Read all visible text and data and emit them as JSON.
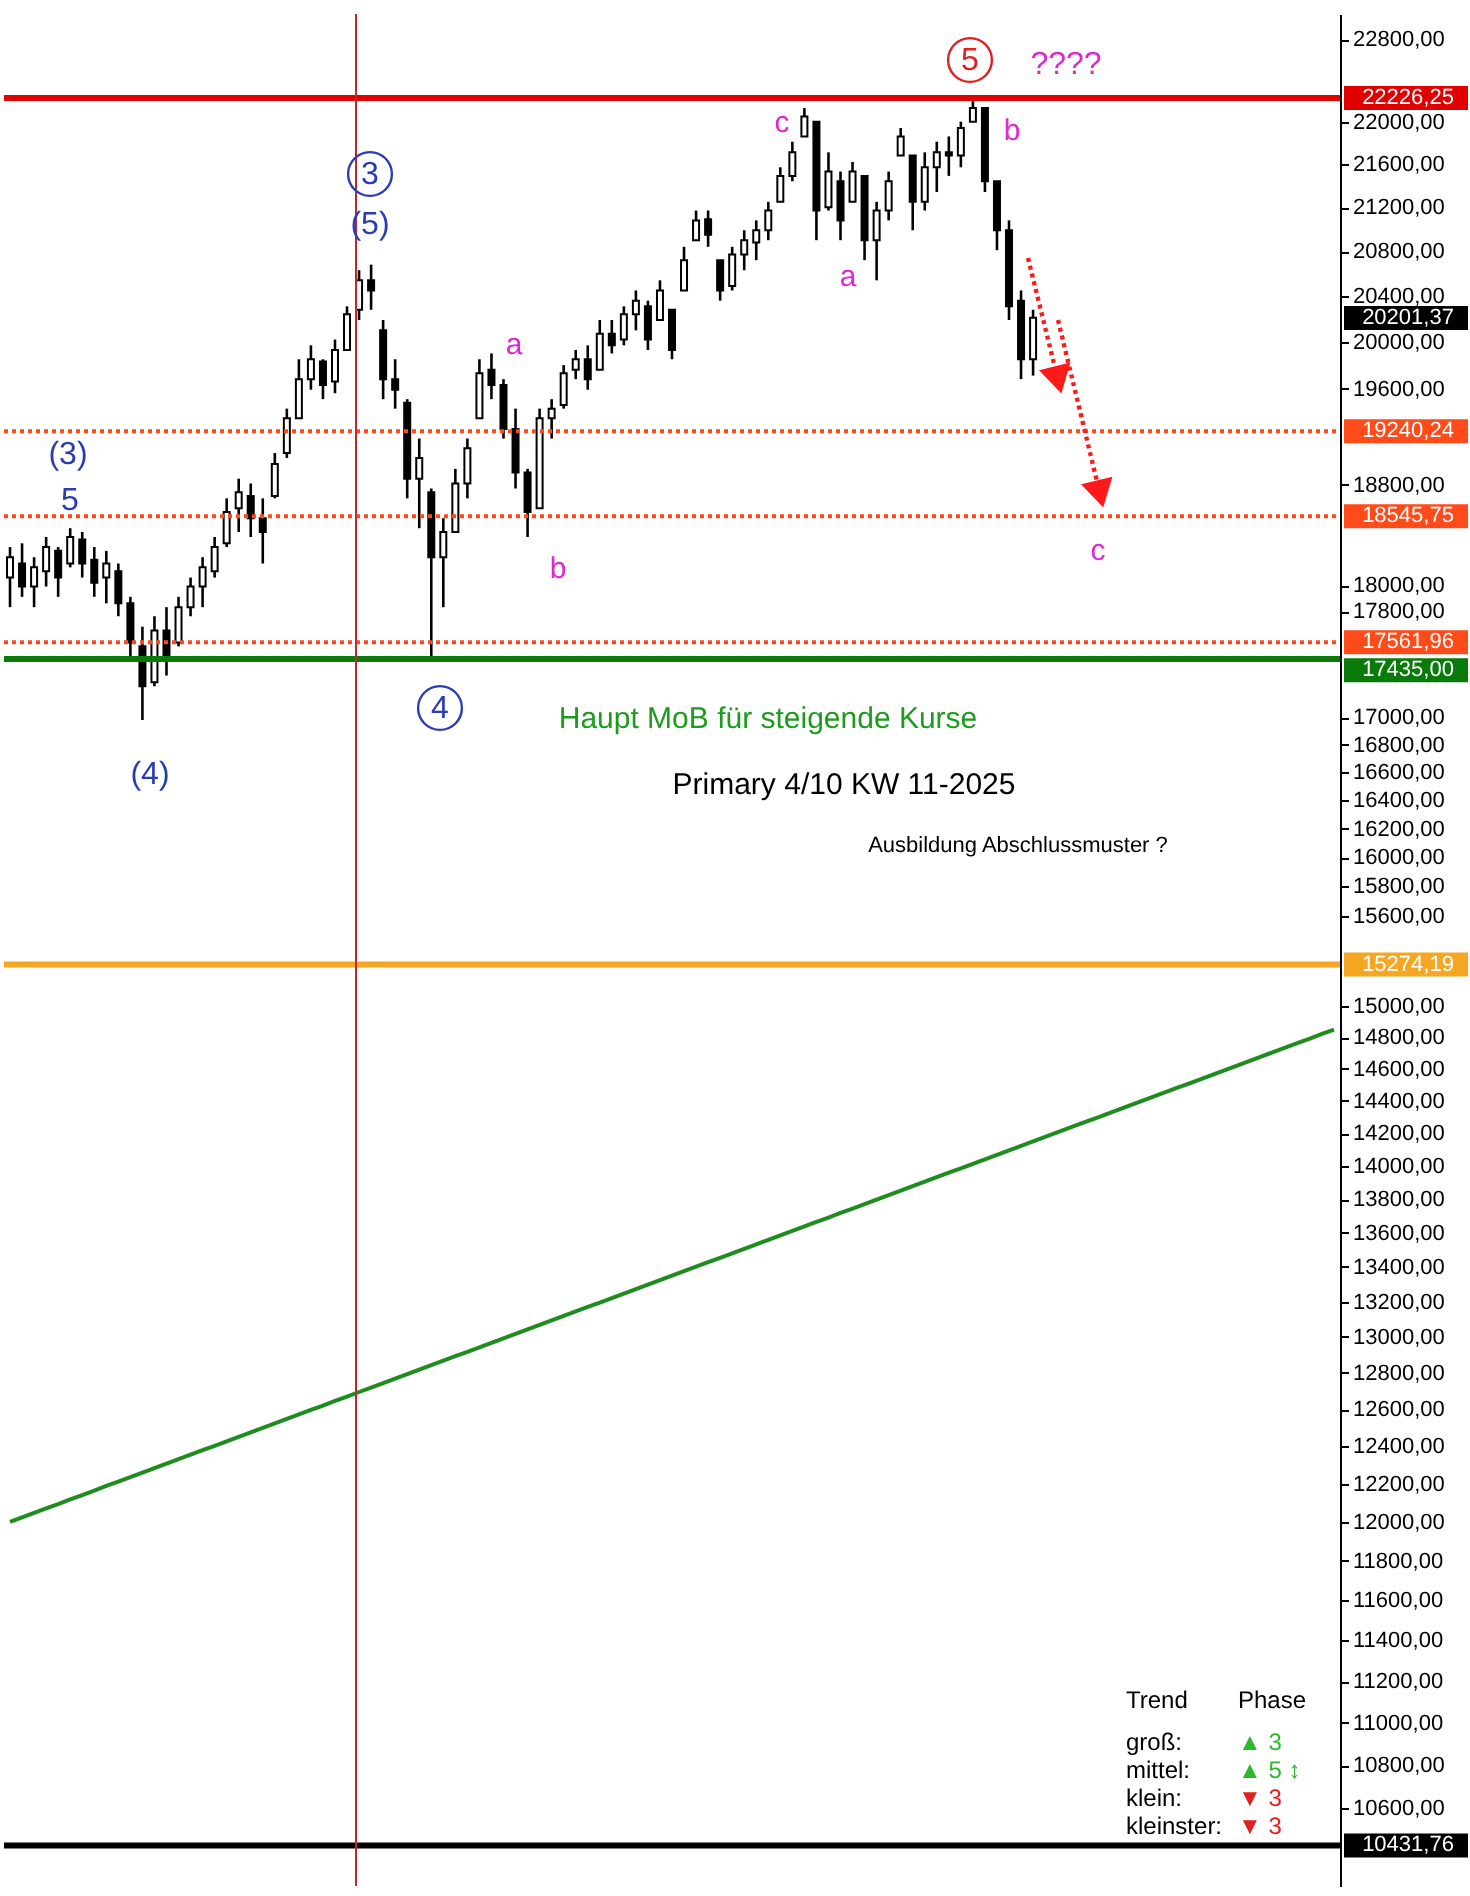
{
  "chart_data": {
    "type": "candlestick",
    "color": "#000000",
    "categories": [
      null,
      null,
      null,
      null,
      null,
      null,
      null,
      null,
      null,
      null,
      null,
      null,
      null,
      null,
      null,
      null,
      null,
      null,
      null,
      null,
      null,
      null,
      null,
      null,
      null,
      null,
      null,
      null,
      null,
      null,
      null,
      null,
      null,
      null,
      null,
      null,
      null,
      null,
      null,
      null,
      null,
      null,
      null,
      null,
      null,
      null,
      null,
      null,
      null,
      null,
      null,
      null,
      null,
      null,
      null,
      null,
      null,
      null,
      null,
      null,
      null,
      null,
      null,
      null,
      null,
      null,
      null,
      null,
      null,
      null,
      null,
      null,
      null,
      null,
      null,
      null,
      null,
      null,
      null,
      null,
      null,
      null,
      null,
      null,
      null,
      null,
      null,
      null,
      null,
      null,
      null,
      null,
      null,
      null,
      null,
      null,
      null,
      null,
      null,
      null,
      null,
      null,
      null,
      null,
      null,
      null,
      null,
      null,
      null,
      null,
      null
    ],
    "ohlc": [
      [
        18060,
        18300,
        17830,
        18220
      ],
      [
        18170,
        18330,
        17910,
        17990
      ],
      [
        17990,
        18220,
        17830,
        18140
      ],
      [
        18110,
        18380,
        17990,
        18300
      ],
      [
        18270,
        18300,
        17910,
        18060
      ],
      [
        18170,
        18450,
        18140,
        18380
      ],
      [
        18360,
        18420,
        18060,
        18170
      ],
      [
        18200,
        18300,
        17910,
        18020
      ],
      [
        18060,
        18270,
        17860,
        18170
      ],
      [
        18110,
        18170,
        17760,
        17860
      ],
      [
        17860,
        17910,
        17450,
        17560
      ],
      [
        17530,
        17680,
        16980,
        17230
      ],
      [
        17260,
        17760,
        17230,
        17650
      ],
      [
        17650,
        17830,
        17310,
        17450
      ],
      [
        17560,
        17910,
        17530,
        17830
      ],
      [
        17830,
        18060,
        17760,
        17990
      ],
      [
        17990,
        18220,
        17830,
        18140
      ],
      [
        18110,
        18380,
        18060,
        18300
      ],
      [
        18330,
        18690,
        18300,
        18580
      ],
      [
        18610,
        18850,
        18420,
        18740
      ],
      [
        18710,
        18810,
        18380,
        18530
      ],
      [
        18530,
        18690,
        18170,
        18420
      ],
      [
        18710,
        19060,
        18690,
        18970
      ],
      [
        19060,
        19430,
        19020,
        19350
      ],
      [
        19350,
        19850,
        19350,
        19680
      ],
      [
        19680,
        19970,
        19590,
        19850
      ],
      [
        19830,
        19850,
        19510,
        19630
      ],
      [
        19660,
        20020,
        19560,
        19930
      ],
      [
        19930,
        20310,
        19930,
        20240
      ],
      [
        20280,
        20630,
        20190,
        20540
      ],
      [
        20540,
        20680,
        20280,
        20450
      ],
      [
        20100,
        20190,
        19510,
        19680
      ],
      [
        19680,
        19850,
        19430,
        19590
      ],
      [
        19480,
        19510,
        18690,
        18850
      ],
      [
        18850,
        19180,
        18450,
        19020
      ],
      [
        18740,
        18770,
        17450,
        18220
      ],
      [
        18220,
        18530,
        17830,
        18420
      ],
      [
        18420,
        18930,
        18420,
        18810
      ],
      [
        18810,
        19180,
        18690,
        19100
      ],
      [
        19350,
        19850,
        19350,
        19730
      ],
      [
        19760,
        19900,
        19510,
        19630
      ],
      [
        19630,
        19680,
        19180,
        19260
      ],
      [
        19260,
        19430,
        18770,
        18900
      ],
      [
        18900,
        18930,
        18380,
        18580
      ],
      [
        18610,
        19430,
        18610,
        19350
      ],
      [
        19350,
        19510,
        19180,
        19430
      ],
      [
        19460,
        19800,
        19430,
        19730
      ],
      [
        19760,
        19930,
        19680,
        19850
      ],
      [
        19850,
        19970,
        19590,
        19680
      ],
      [
        19760,
        20190,
        19760,
        20070
      ],
      [
        20070,
        20190,
        19900,
        19970
      ],
      [
        20020,
        20310,
        19970,
        20240
      ],
      [
        20240,
        20450,
        20100,
        20360
      ],
      [
        20310,
        20360,
        19930,
        20020
      ],
      [
        20190,
        20540,
        20190,
        20450
      ],
      [
        20280,
        20280,
        19850,
        19930
      ],
      [
        20450,
        20840,
        20450,
        20720
      ],
      [
        20900,
        21170,
        20900,
        21080
      ],
      [
        21090,
        21170,
        20840,
        20950
      ],
      [
        20720,
        20720,
        20360,
        20450
      ],
      [
        20490,
        20840,
        20450,
        20770
      ],
      [
        20770,
        20990,
        20630,
        20900
      ],
      [
        20880,
        21080,
        20720,
        20990
      ],
      [
        20990,
        21250,
        20900,
        21170
      ],
      [
        21250,
        21570,
        21250,
        21490
      ],
      [
        21490,
        21810,
        21440,
        21710
      ],
      [
        21860,
        22130,
        21860,
        22050
      ],
      [
        22000,
        22000,
        20900,
        21170
      ],
      [
        21200,
        21710,
        21170,
        21530
      ],
      [
        21440,
        21530,
        20900,
        21080
      ],
      [
        21250,
        21620,
        21250,
        21530
      ],
      [
        21490,
        21490,
        20720,
        20900
      ],
      [
        20900,
        21250,
        20540,
        21170
      ],
      [
        21170,
        21530,
        21080,
        21440
      ],
      [
        21680,
        21940,
        21680,
        21860
      ],
      [
        21680,
        21680,
        20990,
        21250
      ],
      [
        21250,
        21710,
        21170,
        21570
      ],
      [
        21570,
        21810,
        21340,
        21710
      ],
      [
        21710,
        21860,
        21490,
        21680
      ],
      [
        21680,
        22000,
        21570,
        21940
      ],
      [
        22000,
        22220,
        22000,
        22130
      ],
      [
        22130,
        22130,
        21340,
        21440
      ],
      [
        21440,
        21440,
        20810,
        20990
      ],
      [
        20990,
        21080,
        20190,
        20310
      ],
      [
        20360,
        20450,
        19680,
        19850
      ],
      [
        19850,
        20280,
        19710,
        20210
      ],
      null,
      null,
      null,
      null,
      null,
      null,
      null,
      null,
      null,
      null,
      null,
      null,
      null,
      null,
      null,
      null,
      null,
      null,
      null,
      null,
      null,
      null,
      null,
      null,
      null
    ],
    "series": [
      {
        "type": "line",
        "color": "#1e8c1e",
        "line_style": "solid",
        "values": [
          12000,
          12023,
          12047,
          12070,
          12093,
          12117,
          12140,
          12164,
          12188,
          12211,
          12235,
          12259,
          12283,
          12307,
          12331,
          12354,
          12378,
          12402,
          12426,
          12450,
          12474,
          12498,
          12523,
          12547,
          12572,
          12596,
          12620,
          12645,
          12669,
          12694,
          12718,
          12743,
          12768,
          12793,
          12818,
          12842,
          12867,
          12892,
          12917,
          12942,
          12967,
          12992,
          13018,
          13043,
          13068,
          13094,
          13119,
          13145,
          13170,
          13195,
          13221,
          13246,
          13272,
          13298,
          13324,
          13350,
          13376,
          13402,
          13428,
          13453,
          13479,
          13506,
          13532,
          13558,
          13585,
          13611,
          13637,
          13664,
          13690,
          13717,
          13743,
          13770,
          13797,
          13824,
          13850,
          13877,
          13904,
          13931,
          13958,
          13985,
          14012,
          14039,
          14067,
          14094,
          14121,
          14149,
          14176,
          14204,
          14231,
          14259,
          14286,
          14314,
          14342,
          14370,
          14398,
          14426,
          14454,
          14482,
          14509,
          14537,
          14565,
          14594,
          14622,
          14651,
          14679,
          14708,
          14736,
          14765,
          14793,
          14822,
          14850
        ]
      }
    ],
    "ylim": [
      10250,
      23050
    ],
    "log": true,
    "tick_labels": "y",
    "grid": false,
    "yticks": [
      {
        "value": 22800,
        "label": "22800,00"
      },
      {
        "value": 22000,
        "label": "22000,00"
      },
      {
        "value": 21600,
        "label": "21600,00"
      },
      {
        "value": 21200,
        "label": "21200,00"
      },
      {
        "value": 20800,
        "label": "20800,00"
      },
      {
        "value": 20400,
        "label": "20400,00"
      },
      {
        "value": 20000,
        "label": "20000,00"
      },
      {
        "value": 19600,
        "label": "19600,00"
      },
      {
        "value": 18800,
        "label": "18800,00"
      },
      {
        "value": 18000,
        "label": "18000,00"
      },
      {
        "value": 17800,
        "label": "17800,00"
      },
      {
        "value": 17000,
        "label": "17000,00"
      },
      {
        "value": 16800,
        "label": "16800,00"
      },
      {
        "value": 16600,
        "label": "16600,00"
      },
      {
        "value": 16400,
        "label": "16400,00"
      },
      {
        "value": 16200,
        "label": "16200,00"
      },
      {
        "value": 16000,
        "label": "16000,00"
      },
      {
        "value": 15800,
        "label": "15800,00"
      },
      {
        "value": 15600,
        "label": "15600,00"
      },
      {
        "value": 15000,
        "label": "15000,00"
      },
      {
        "value": 14800,
        "label": "14800,00"
      },
      {
        "value": 14600,
        "label": "14600,00"
      },
      {
        "value": 14400,
        "label": "14400,00"
      },
      {
        "value": 14200,
        "label": "14200,00"
      },
      {
        "value": 14000,
        "label": "14000,00"
      },
      {
        "value": 13800,
        "label": "13800,00"
      },
      {
        "value": 13600,
        "label": "13600,00"
      },
      {
        "value": 13400,
        "label": "13400,00"
      },
      {
        "value": 13200,
        "label": "13200,00"
      },
      {
        "value": 13000,
        "label": "13000,00"
      },
      {
        "value": 12800,
        "label": "12800,00"
      },
      {
        "value": 12600,
        "label": "12600,00"
      },
      {
        "value": 12400,
        "label": "12400,00"
      },
      {
        "value": 12200,
        "label": "12200,00"
      },
      {
        "value": 12000,
        "label": "12000,00"
      },
      {
        "value": 11800,
        "label": "11800,00"
      },
      {
        "value": 11600,
        "label": "11600,00"
      },
      {
        "value": 11400,
        "label": "11400,00"
      },
      {
        "value": 11200,
        "label": "11200,00"
      },
      {
        "value": 11000,
        "label": "11000,00"
      },
      {
        "value": 10800,
        "label": "10800,00"
      },
      {
        "value": 10600,
        "label": "10600,00"
      }
    ],
    "ref_lines": [
      {
        "axis": "y",
        "value": 22226.25,
        "label": "22226,25",
        "color": "#e00000",
        "line_style": "solid"
      },
      {
        "axis": "y",
        "value": 19240.24,
        "label": "19240,24",
        "color": "#ff4a1a",
        "line_style": "dotted"
      },
      {
        "axis": "y",
        "value": 18545.75,
        "label": "18545,75",
        "color": "#ff4a1a",
        "line_style": "dotted"
      },
      {
        "axis": "y",
        "value": 17561.96,
        "label": "17561,96",
        "color": "#ff4a1a",
        "line_style": "dotted"
      },
      {
        "axis": "y",
        "value": 17435,
        "label": "17435,00",
        "color": "#0a7a0a",
        "line_style": "solid"
      },
      {
        "axis": "y",
        "value": 15274.19,
        "label": "15274,19",
        "color": "#f5a623",
        "line_style": "solid"
      },
      {
        "axis": "y",
        "value": 10431.76,
        "label": "10431,76",
        "color": "#000000",
        "line_style": "solid"
      }
    ],
    "annotations": [
      "3",
      "(5)",
      "(3)",
      "5",
      "(4)",
      "4",
      "a",
      "b",
      "c",
      "a",
      "5",
      "????",
      "b",
      "c",
      "Haupt MoB für steigende Kurse",
      "Primary 4/10 KW 11-2025",
      "Ausbildung Abschlussmuster ?",
      "Trend",
      "Phase",
      "groß:",
      "▲ 3",
      "mittel:",
      "▲ 5 ↕",
      "klein:",
      "▼ 3",
      "kleinster:",
      "▼ 3",
      "20201,37"
    ]
  }
}
